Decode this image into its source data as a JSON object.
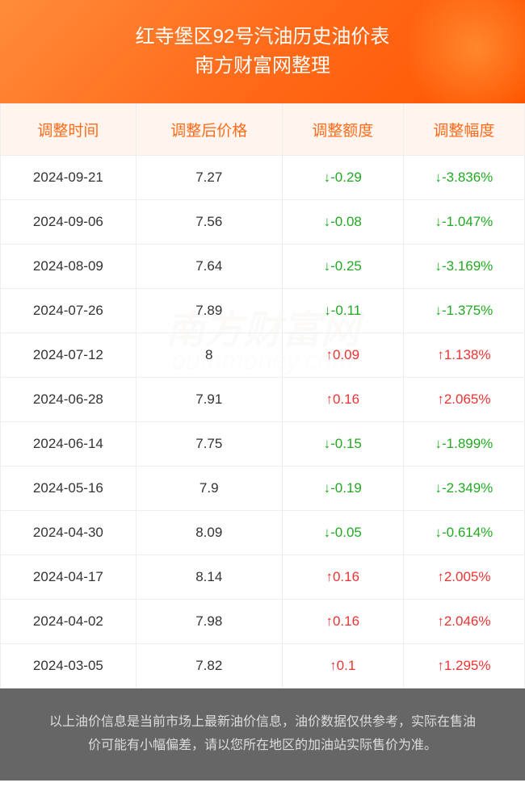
{
  "header": {
    "title": "红寺堡区92号汽油历史油价表",
    "subtitle": "南方财富网整理"
  },
  "watermark": {
    "main": "南方财富网",
    "sub": "outhmoney.com"
  },
  "table": {
    "columns": [
      "调整时间",
      "调整后价格",
      "调整额度",
      "调整幅度"
    ],
    "header_bg": "#fff5ee",
    "header_color": "#ff6b1a",
    "border_color": "#eeeeee",
    "down_color": "#22aa22",
    "up_color": "#ee3333",
    "text_color": "#333333",
    "font_size": 17,
    "rows": [
      {
        "date": "2024-09-21",
        "price": "7.27",
        "amount": "↓-0.29",
        "percent": "↓-3.836%",
        "direction": "down"
      },
      {
        "date": "2024-09-06",
        "price": "7.56",
        "amount": "↓-0.08",
        "percent": "↓-1.047%",
        "direction": "down"
      },
      {
        "date": "2024-08-09",
        "price": "7.64",
        "amount": "↓-0.25",
        "percent": "↓-3.169%",
        "direction": "down"
      },
      {
        "date": "2024-07-26",
        "price": "7.89",
        "amount": "↓-0.11",
        "percent": "↓-1.375%",
        "direction": "down"
      },
      {
        "date": "2024-07-12",
        "price": "8",
        "amount": "↑0.09",
        "percent": "↑1.138%",
        "direction": "up"
      },
      {
        "date": "2024-06-28",
        "price": "7.91",
        "amount": "↑0.16",
        "percent": "↑2.065%",
        "direction": "up"
      },
      {
        "date": "2024-06-14",
        "price": "7.75",
        "amount": "↓-0.15",
        "percent": "↓-1.899%",
        "direction": "down"
      },
      {
        "date": "2024-05-16",
        "price": "7.9",
        "amount": "↓-0.19",
        "percent": "↓-2.349%",
        "direction": "down"
      },
      {
        "date": "2024-04-30",
        "price": "8.09",
        "amount": "↓-0.05",
        "percent": "↓-0.614%",
        "direction": "down"
      },
      {
        "date": "2024-04-17",
        "price": "8.14",
        "amount": "↑0.16",
        "percent": "↑2.005%",
        "direction": "up"
      },
      {
        "date": "2024-04-02",
        "price": "7.98",
        "amount": "↑0.16",
        "percent": "↑2.046%",
        "direction": "up"
      },
      {
        "date": "2024-03-05",
        "price": "7.82",
        "amount": "↑0.1",
        "percent": "↑1.295%",
        "direction": "up"
      }
    ]
  },
  "footer": {
    "text": "以上油价信息是当前市场上最新油价信息，油价数据仅供参考，实际在售油价可能有小幅偏差，请以您所在地区的加油站实际售价为准。"
  },
  "colors": {
    "header_gradient_start": "#ff8c3a",
    "header_gradient_end": "#ff5500",
    "footer_bg": "#666666",
    "footer_text": "#dddddd"
  }
}
